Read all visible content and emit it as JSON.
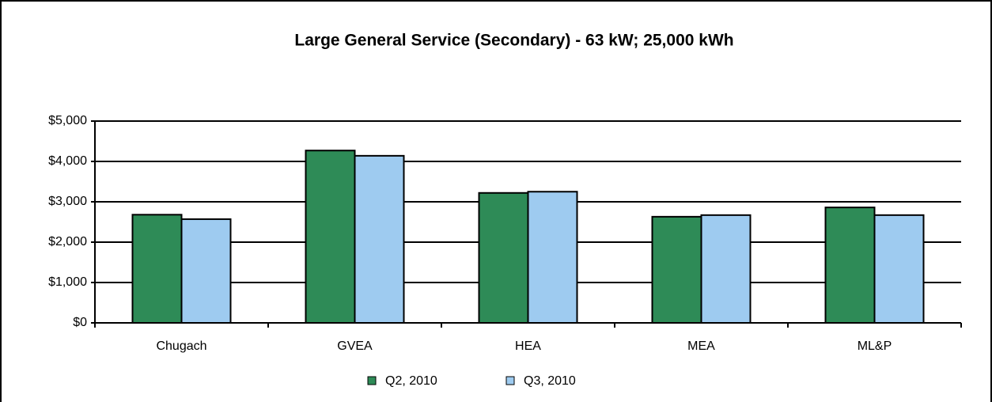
{
  "chart_data": {
    "type": "bar",
    "title": "Large General Service (Secondary) - 63 kW; 25,000 kWh",
    "categories": [
      "Chugach",
      "GVEA",
      "HEA",
      "MEA",
      "ML&P"
    ],
    "series": [
      {
        "name": "Q2, 2010",
        "color": "#2e8b57",
        "values": [
          2680,
          4270,
          3220,
          2630,
          2860
        ]
      },
      {
        "name": "Q3, 2010",
        "color": "#9ecbf0",
        "values": [
          2570,
          4140,
          3250,
          2670,
          2670
        ]
      }
    ],
    "ylim": [
      0,
      5000
    ],
    "yticks": [
      {
        "value": 0,
        "label": "$0"
      },
      {
        "value": 1000,
        "label": "$1,000"
      },
      {
        "value": 2000,
        "label": "$2,000"
      },
      {
        "value": 3000,
        "label": "$3,000"
      },
      {
        "value": 4000,
        "label": "$4,000"
      },
      {
        "value": 5000,
        "label": "$5,000"
      }
    ],
    "grid": true,
    "legend": "bottom"
  }
}
